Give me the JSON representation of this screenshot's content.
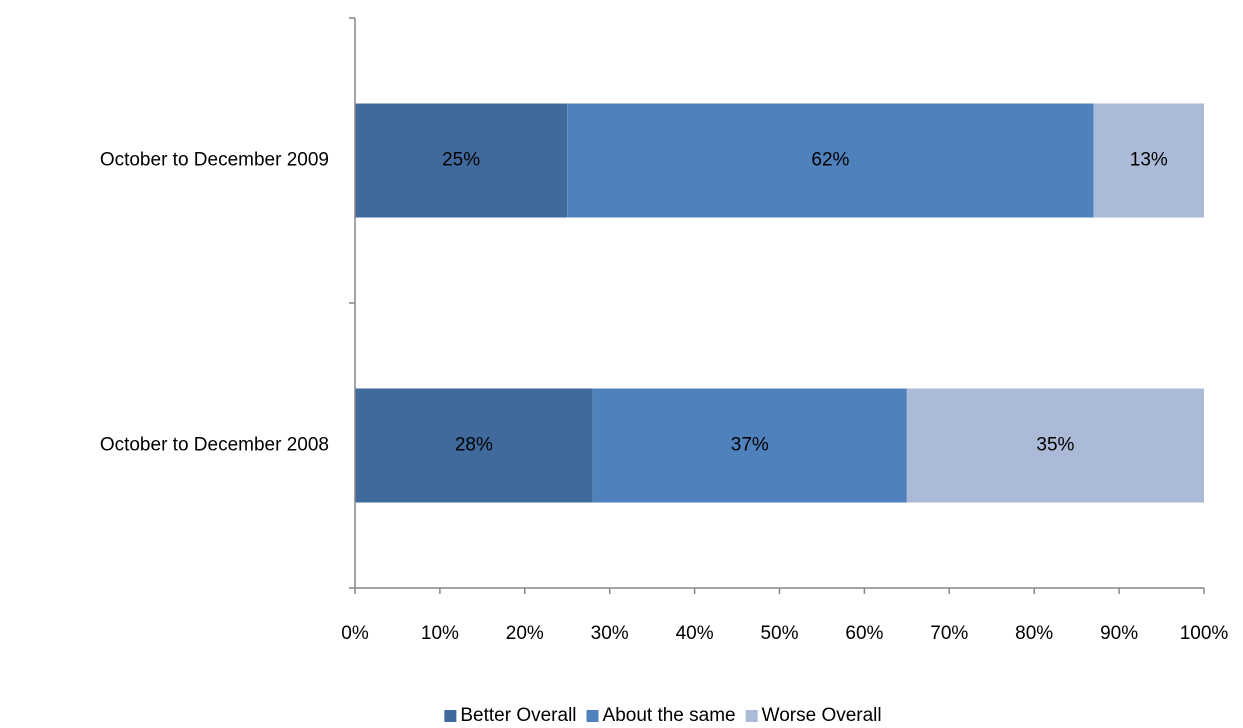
{
  "chart_data": {
    "type": "bar",
    "orientation": "horizontal",
    "stacked": true,
    "categories": [
      "October to December 2009",
      "October to December 2008"
    ],
    "series": [
      {
        "name": "Better Overall",
        "color": "#406a9c",
        "values": [
          25,
          28
        ],
        "value_labels": [
          "25%",
          "28%"
        ]
      },
      {
        "name": "About the same",
        "color": "#4f81bd",
        "values": [
          62,
          37
        ],
        "value_labels": [
          "62%",
          "37%"
        ]
      },
      {
        "name": "Worse Overall",
        "color": "#aabad7",
        "values": [
          13,
          35
        ],
        "value_labels": [
          "13%",
          "35%"
        ]
      }
    ],
    "xlim": [
      0,
      100
    ],
    "xticks": [
      {
        "value": 0,
        "label": "0%"
      },
      {
        "value": 10,
        "label": "10%"
      },
      {
        "value": 20,
        "label": "20%"
      },
      {
        "value": 30,
        "label": "30%"
      },
      {
        "value": 40,
        "label": "40%"
      },
      {
        "value": 50,
        "label": "50%"
      },
      {
        "value": 60,
        "label": "60%"
      },
      {
        "value": 70,
        "label": "70%"
      },
      {
        "value": 80,
        "label": "80%"
      },
      {
        "value": 90,
        "label": "90%"
      },
      {
        "value": 100,
        "label": "100%"
      }
    ],
    "grid": false,
    "legend": "bottom"
  }
}
